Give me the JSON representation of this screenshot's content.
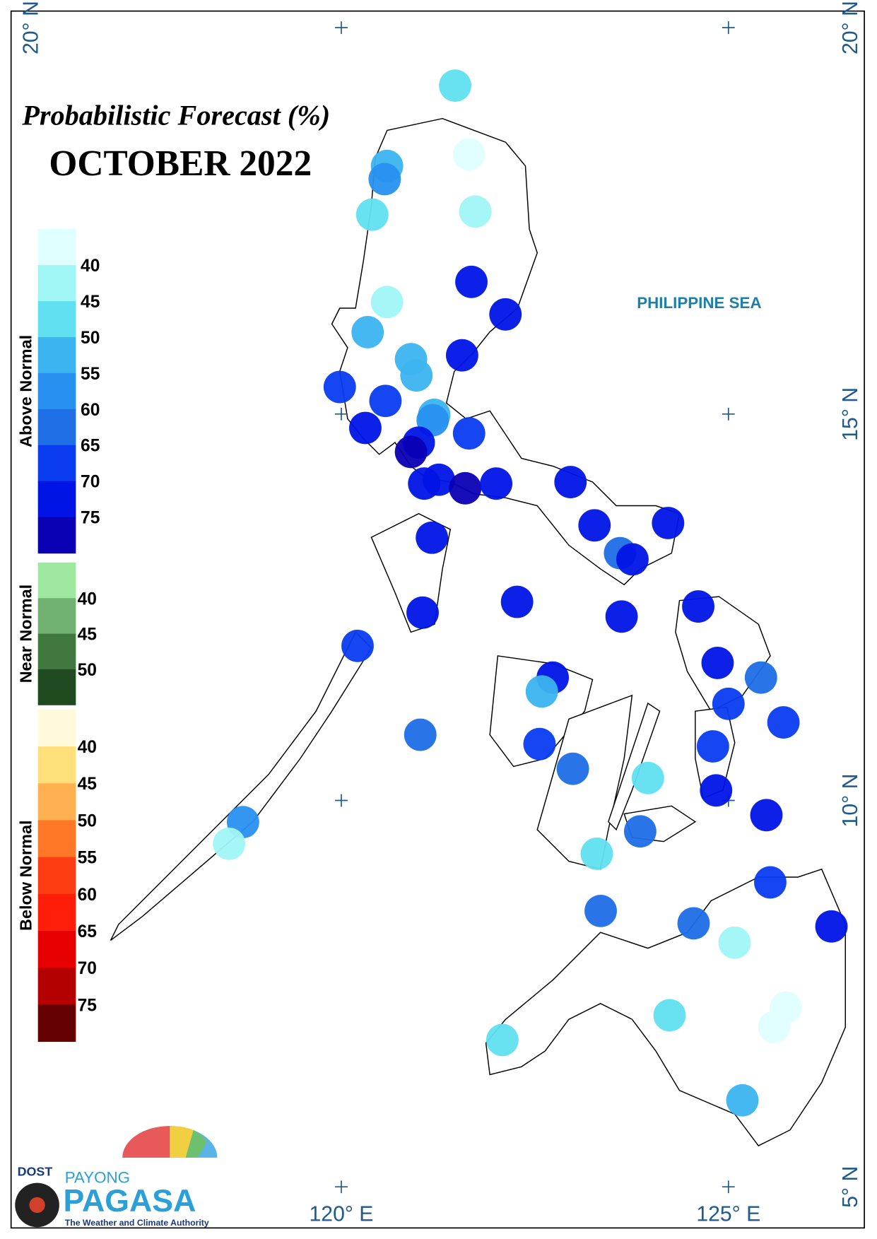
{
  "title": "Probabilistic Forecast (%)",
  "period": "OCTOBER 2022",
  "sea_label": "PHILIPPINE SEA",
  "logo": {
    "agency": "DOST",
    "program": "PAYONG",
    "name": "PAGASA",
    "tagline": "The Weather and Climate Authority"
  },
  "lon_ticks": [
    {
      "value": 120,
      "label": "120° E"
    },
    {
      "value": 125,
      "label": "125° E"
    }
  ],
  "lat_ticks": [
    {
      "value": 20,
      "label": "20° N"
    },
    {
      "value": 15,
      "label": "15° N"
    },
    {
      "value": 10,
      "label": "10° N"
    },
    {
      "value": 5,
      "label": "5° N"
    }
  ],
  "legend": [
    {
      "title": "Above Normal",
      "ticks": [
        40,
        45,
        50,
        55,
        60,
        65,
        70,
        75
      ],
      "colors": [
        "#e0ffff",
        "#a0f5f5",
        "#60e0f0",
        "#3cb4f0",
        "#2890f0",
        "#1e6ee6",
        "#0a3cf0",
        "#0014e6",
        "#0a00b4"
      ]
    },
    {
      "title": "Near Normal",
      "ticks": [
        40,
        45,
        50
      ],
      "colors": [
        "#a0e8a0",
        "#70b070",
        "#407840",
        "#204a20"
      ]
    },
    {
      "title": "Below Normal",
      "ticks": [
        40,
        45,
        50,
        55,
        60,
        65,
        70,
        75
      ],
      "colors": [
        "#fffadc",
        "#ffe07a",
        "#ffb050",
        "#ff7828",
        "#ff3c14",
        "#ff1e0a",
        "#e60000",
        "#b40000",
        "#640000"
      ]
    }
  ],
  "stations": [
    {
      "lon": 121.47,
      "lat": 19.25,
      "value": 47
    },
    {
      "lon": 121.65,
      "lat": 18.36,
      "value": 38
    },
    {
      "lon": 120.59,
      "lat": 18.21,
      "value": 52
    },
    {
      "lon": 120.56,
      "lat": 18.04,
      "value": 57
    },
    {
      "lon": 120.4,
      "lat": 17.58,
      "value": 47
    },
    {
      "lon": 121.73,
      "lat": 17.62,
      "value": 42
    },
    {
      "lon": 121.68,
      "lat": 16.71,
      "value": 72
    },
    {
      "lon": 122.12,
      "lat": 16.29,
      "value": 72
    },
    {
      "lon": 120.59,
      "lat": 16.45,
      "value": 42
    },
    {
      "lon": 120.34,
      "lat": 16.06,
      "value": 52
    },
    {
      "lon": 120.9,
      "lat": 15.71,
      "value": 52
    },
    {
      "lon": 120.97,
      "lat": 15.5,
      "value": 52
    },
    {
      "lon": 121.56,
      "lat": 15.76,
      "value": 72
    },
    {
      "lon": 119.98,
      "lat": 15.35,
      "value": 67
    },
    {
      "lon": 120.57,
      "lat": 15.17,
      "value": 67
    },
    {
      "lon": 120.31,
      "lat": 14.82,
      "value": 72
    },
    {
      "lon": 121.2,
      "lat": 14.99,
      "value": 52
    },
    {
      "lon": 121.18,
      "lat": 14.92,
      "value": 57
    },
    {
      "lon": 121.65,
      "lat": 14.75,
      "value": 67
    },
    {
      "lon": 121.0,
      "lat": 14.63,
      "value": 72
    },
    {
      "lon": 120.9,
      "lat": 14.51,
      "value": 77
    },
    {
      "lon": 121.07,
      "lat": 14.1,
      "value": 72
    },
    {
      "lon": 121.26,
      "lat": 14.15,
      "value": 72
    },
    {
      "lon": 121.6,
      "lat": 14.04,
      "value": 77
    },
    {
      "lon": 122.0,
      "lat": 14.1,
      "value": 72
    },
    {
      "lon": 122.96,
      "lat": 14.12,
      "value": 72
    },
    {
      "lon": 123.27,
      "lat": 13.56,
      "value": 72
    },
    {
      "lon": 124.22,
      "lat": 13.59,
      "value": 72
    },
    {
      "lon": 123.6,
      "lat": 13.2,
      "value": 62
    },
    {
      "lon": 123.76,
      "lat": 13.12,
      "value": 72
    },
    {
      "lon": 121.17,
      "lat": 13.4,
      "value": 72
    },
    {
      "lon": 122.27,
      "lat": 12.57,
      "value": 72
    },
    {
      "lon": 121.05,
      "lat": 12.43,
      "value": 72
    },
    {
      "lon": 123.62,
      "lat": 12.38,
      "value": 72
    },
    {
      "lon": 124.61,
      "lat": 12.51,
      "value": 72
    },
    {
      "lon": 120.21,
      "lat": 12.0,
      "value": 67
    },
    {
      "lon": 122.73,
      "lat": 11.59,
      "value": 72
    },
    {
      "lon": 122.59,
      "lat": 11.41,
      "value": 52
    },
    {
      "lon": 124.86,
      "lat": 11.78,
      "value": 72
    },
    {
      "lon": 125.42,
      "lat": 11.59,
      "value": 62
    },
    {
      "lon": 125.0,
      "lat": 11.25,
      "value": 67
    },
    {
      "lon": 125.71,
      "lat": 11.01,
      "value": 67
    },
    {
      "lon": 121.02,
      "lat": 10.85,
      "value": 62
    },
    {
      "lon": 122.56,
      "lat": 10.73,
      "value": 67
    },
    {
      "lon": 124.8,
      "lat": 10.7,
      "value": 67
    },
    {
      "lon": 122.99,
      "lat": 10.41,
      "value": 62
    },
    {
      "lon": 123.96,
      "lat": 10.29,
      "value": 47
    },
    {
      "lon": 124.84,
      "lat": 10.13,
      "value": 72
    },
    {
      "lon": 125.49,
      "lat": 9.81,
      "value": 72
    },
    {
      "lon": 118.73,
      "lat": 9.72,
      "value": 57
    },
    {
      "lon": 118.55,
      "lat": 9.44,
      "value": 42
    },
    {
      "lon": 123.86,
      "lat": 9.6,
      "value": 62
    },
    {
      "lon": 123.3,
      "lat": 9.31,
      "value": 47
    },
    {
      "lon": 125.54,
      "lat": 8.94,
      "value": 67
    },
    {
      "lon": 123.35,
      "lat": 8.57,
      "value": 62
    },
    {
      "lon": 124.55,
      "lat": 8.41,
      "value": 62
    },
    {
      "lon": 125.08,
      "lat": 8.16,
      "value": 42
    },
    {
      "lon": 126.33,
      "lat": 8.37,
      "value": 72
    },
    {
      "lon": 124.24,
      "lat": 7.22,
      "value": 47
    },
    {
      "lon": 122.08,
      "lat": 6.9,
      "value": 47
    },
    {
      "lon": 125.74,
      "lat": 7.32,
      "value": 38
    },
    {
      "lon": 125.59,
      "lat": 7.07,
      "value": 38
    },
    {
      "lon": 125.18,
      "lat": 6.12,
      "value": 52
    }
  ]
}
